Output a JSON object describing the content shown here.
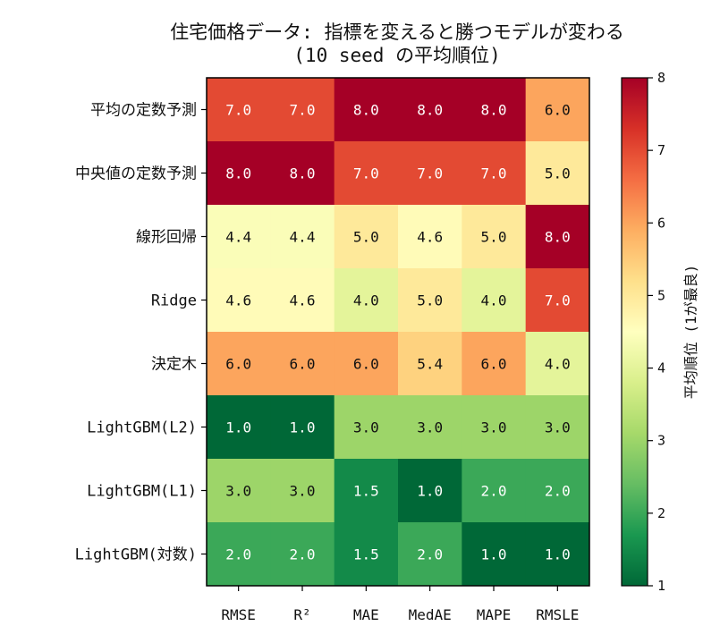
{
  "chart_data": {
    "type": "heatmap",
    "title": "住宅価格データ: 指標を変えると勝つモデルが変わる",
    "subtitle": "(10 seed の平均順位)",
    "rows": [
      "平均の定数予測",
      "中央値の定数予測",
      "線形回帰",
      "Ridge",
      "決定木",
      "LightGBM(L2)",
      "LightGBM(L1)",
      "LightGBM(対数)"
    ],
    "columns": [
      "RMSE",
      "R²",
      "MAE",
      "MedAE",
      "MAPE",
      "RMSLE"
    ],
    "values": [
      [
        7.0,
        7.0,
        8.0,
        8.0,
        8.0,
        6.0
      ],
      [
        8.0,
        8.0,
        7.0,
        7.0,
        7.0,
        5.0
      ],
      [
        4.4,
        4.4,
        5.0,
        4.6,
        5.0,
        8.0
      ],
      [
        4.6,
        4.6,
        4.0,
        5.0,
        4.0,
        7.0
      ],
      [
        6.0,
        6.0,
        6.0,
        5.4,
        6.0,
        4.0
      ],
      [
        1.0,
        1.0,
        3.0,
        3.0,
        3.0,
        3.0
      ],
      [
        3.0,
        3.0,
        1.5,
        1.0,
        2.0,
        2.0
      ],
      [
        2.0,
        2.0,
        1.5,
        2.0,
        1.0,
        1.0
      ]
    ],
    "value_labels": [
      [
        "7.0",
        "7.0",
        "8.0",
        "8.0",
        "8.0",
        "6.0"
      ],
      [
        "8.0",
        "8.0",
        "7.0",
        "7.0",
        "7.0",
        "5.0"
      ],
      [
        "4.4",
        "4.4",
        "5.0",
        "4.6",
        "5.0",
        "8.0"
      ],
      [
        "4.6",
        "4.6",
        "4.0",
        "5.0",
        "4.0",
        "7.0"
      ],
      [
        "6.0",
        "6.0",
        "6.0",
        "5.4",
        "6.0",
        "4.0"
      ],
      [
        "1.0",
        "1.0",
        "3.0",
        "3.0",
        "3.0",
        "3.0"
      ],
      [
        "3.0",
        "3.0",
        "1.5",
        "1.0",
        "2.0",
        "2.0"
      ],
      [
        "2.0",
        "2.0",
        "1.5",
        "2.0",
        "1.0",
        "1.0"
      ]
    ],
    "colormap": "RdYlGn_r",
    "vmin": 1,
    "vmax": 8,
    "colorbar": {
      "label": "平均順位 (1が最良)",
      "ticks": [
        "1",
        "2",
        "3",
        "4",
        "5",
        "6",
        "7",
        "8"
      ]
    }
  }
}
